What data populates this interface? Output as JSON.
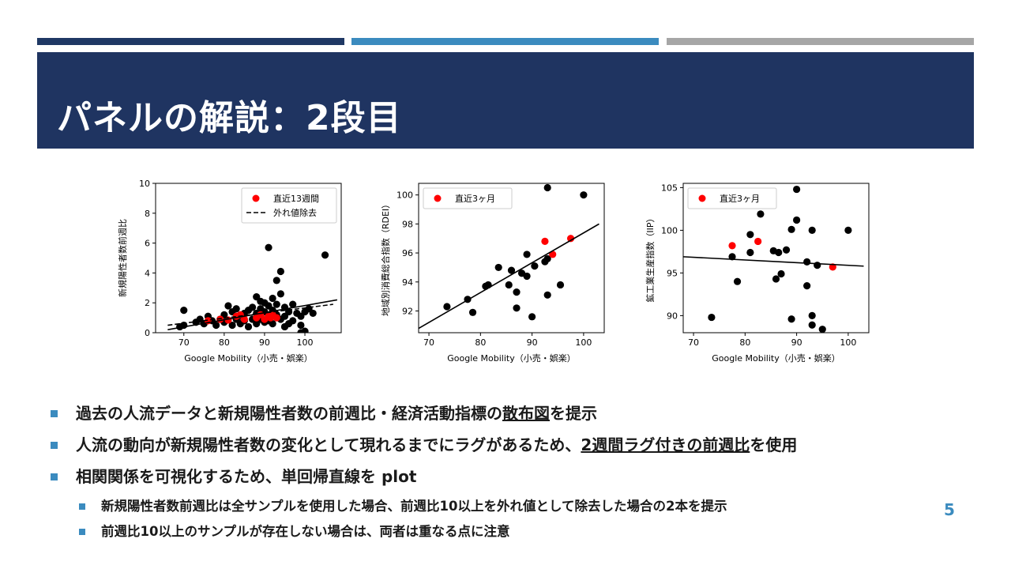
{
  "slide": {
    "title": "パネルの解説：2段目",
    "page_number": "5"
  },
  "bullets": [
    {
      "level": 1,
      "parts": [
        {
          "t": "過去の人流データと新規陽性者数の前週比・経済活動指標の"
        },
        {
          "t": "散布図",
          "u": true
        },
        {
          "t": "を提示"
        }
      ]
    },
    {
      "level": 1,
      "parts": [
        {
          "t": "人流の動向が新規陽性者数の変化として現れるまでにラグがあるため、"
        },
        {
          "t": "2週間ラグ付きの前週比",
          "u": true
        },
        {
          "t": "を使用"
        }
      ]
    },
    {
      "level": 1,
      "parts": [
        {
          "t": "相関関係を可視化するため、単回帰直線を plot"
        }
      ]
    },
    {
      "level": 2,
      "parts": [
        {
          "t": "新規陽性者数前週比は全サンプルを使用した場合、前週比10以上を外れ値として除去した場合の2本を提示"
        }
      ]
    },
    {
      "level": 2,
      "parts": [
        {
          "t": "前週比10以上のサンプルが存在しない場合は、両者は重なる点に注意"
        }
      ]
    }
  ],
  "colors": {
    "title_bg": "#1f3461",
    "accent": "#3b8bbf",
    "recent": "#ff0000",
    "point": "#000000"
  },
  "chart_data": [
    {
      "type": "scatter",
      "xlabel": "Google Mobility（小売・娯楽）",
      "ylabel": "新規陽性者数前週比",
      "xlim": [
        63,
        109
      ],
      "ylim": [
        0,
        10
      ],
      "xticks": [
        70,
        80,
        90,
        100
      ],
      "yticks": [
        0,
        2,
        4,
        6,
        8,
        10
      ],
      "legend_position": "top-right",
      "legend": [
        {
          "kind": "dot",
          "label": "直近13週間"
        },
        {
          "kind": "dash",
          "label": "外れ値除去"
        }
      ],
      "series": [
        {
          "name": "直近13週間",
          "color": "#ff0000",
          "points": [
            [
              76,
              0.8
            ],
            [
              79,
              0.9
            ],
            [
              81,
              0.85
            ],
            [
              83,
              1.1
            ],
            [
              84,
              1.2
            ],
            [
              85,
              0.9
            ],
            [
              88,
              1.0
            ],
            [
              89,
              1.2
            ],
            [
              90,
              0.9
            ],
            [
              91,
              1.1
            ],
            [
              91.5,
              1.0
            ],
            [
              92,
              1.2
            ],
            [
              93,
              1.0
            ]
          ]
        },
        {
          "name": "",
          "color": "#000000",
          "points": [
            [
              69,
              0.4
            ],
            [
              70,
              0.5
            ],
            [
              70,
              1.5
            ],
            [
              73,
              0.7
            ],
            [
              74,
              0.9
            ],
            [
              75,
              0.6
            ],
            [
              76,
              1.1
            ],
            [
              77,
              0.8
            ],
            [
              78,
              0.5
            ],
            [
              79,
              0.9
            ],
            [
              80,
              1.2
            ],
            [
              80,
              0.7
            ],
            [
              81,
              1.8
            ],
            [
              82,
              1.4
            ],
            [
              82,
              0.5
            ],
            [
              83,
              1.6
            ],
            [
              83,
              0.9
            ],
            [
              84,
              0.6
            ],
            [
              84,
              1.1
            ],
            [
              85,
              1.3
            ],
            [
              85,
              0.8
            ],
            [
              86,
              1.5
            ],
            [
              86,
              0.4
            ],
            [
              87,
              0.9
            ],
            [
              87,
              1.7
            ],
            [
              88,
              0.6
            ],
            [
              88,
              2.4
            ],
            [
              88,
              1.3
            ],
            [
              89,
              1.6
            ],
            [
              89,
              0.9
            ],
            [
              89,
              2.1
            ],
            [
              90,
              1.4
            ],
            [
              90,
              0.7
            ],
            [
              90,
              2.0
            ],
            [
              91,
              1.8
            ],
            [
              91,
              0.8
            ],
            [
              91,
              5.7
            ],
            [
              92,
              1.5
            ],
            [
              92,
              2.3
            ],
            [
              92,
              0.6
            ],
            [
              93,
              3.5
            ],
            [
              93,
              1.9
            ],
            [
              93,
              1.2
            ],
            [
              94,
              2.6
            ],
            [
              94,
              4.1
            ],
            [
              94,
              0.9
            ],
            [
              95,
              1.7
            ],
            [
              95,
              1.1
            ],
            [
              95,
              0.4
            ],
            [
              96,
              1.4
            ],
            [
              96,
              0.6
            ],
            [
              97,
              1.9
            ],
            [
              97,
              0.8
            ],
            [
              98,
              1.3
            ],
            [
              99,
              1.1
            ],
            [
              99,
              0.5
            ],
            [
              100,
              1.4
            ],
            [
              100,
              0.1
            ],
            [
              101,
              1.6
            ],
            [
              102,
              1.3
            ],
            [
              105,
              5.2
            ],
            [
              99,
              0.0
            ]
          ]
        }
      ],
      "lines": [
        {
          "style": "solid",
          "x": [
            66,
            108
          ],
          "y": [
            0.2,
            2.2
          ]
        },
        {
          "style": "dashed",
          "x": [
            66,
            107
          ],
          "y": [
            0.5,
            1.9
          ]
        }
      ]
    },
    {
      "type": "scatter",
      "xlabel": "Google Mobility（小売・娯楽）",
      "ylabel": "地域別消費総合指数（RDEI）",
      "xlim": [
        68,
        104
      ],
      "ylim": [
        90.5,
        100.8
      ],
      "xticks": [
        70,
        80,
        90,
        100
      ],
      "yticks": [
        92,
        94,
        96,
        98,
        100
      ],
      "legend_position": "top-left",
      "legend": [
        {
          "kind": "dot",
          "label": "直近3ヶ月"
        }
      ],
      "series": [
        {
          "name": "直近3ヶ月",
          "color": "#ff0000",
          "points": [
            [
              92.5,
              96.8
            ],
            [
              94,
              95.9
            ],
            [
              97.5,
              97.0
            ]
          ]
        },
        {
          "name": "",
          "color": "#000000",
          "points": [
            [
              73.5,
              92.3
            ],
            [
              77.5,
              92.8
            ],
            [
              78.5,
              91.9
            ],
            [
              81,
              93.7
            ],
            [
              81.5,
              93.8
            ],
            [
              83.5,
              95.0
            ],
            [
              85.5,
              93.8
            ],
            [
              86,
              94.8
            ],
            [
              87,
              93.3
            ],
            [
              87,
              92.2
            ],
            [
              88,
              94.6
            ],
            [
              89,
              95.9
            ],
            [
              89,
              94.4
            ],
            [
              90,
              91.6
            ],
            [
              90.5,
              95.1
            ],
            [
              92.5,
              95.4
            ],
            [
              93,
              95.6
            ],
            [
              93,
              93.1
            ],
            [
              93,
              100.5
            ],
            [
              95.5,
              93.8
            ],
            [
              100,
              100.0
            ]
          ]
        }
      ],
      "lines": [
        {
          "style": "solid",
          "x": [
            68,
            103
          ],
          "y": [
            90.8,
            98.0
          ]
        }
      ]
    },
    {
      "type": "scatter",
      "xlabel": "Google Mobility（小売・娯楽）",
      "ylabel": "鉱工業生産指数（IIP）",
      "xlim": [
        68,
        104
      ],
      "ylim": [
        88,
        105.5
      ],
      "xticks": [
        70,
        80,
        90,
        100
      ],
      "yticks": [
        90,
        95,
        100,
        105
      ],
      "legend_position": "top-left",
      "legend": [
        {
          "kind": "dot",
          "label": "直近3ヶ月"
        }
      ],
      "series": [
        {
          "name": "直近3ヶ月",
          "color": "#ff0000",
          "points": [
            [
              77.5,
              98.2
            ],
            [
              82.5,
              98.7
            ],
            [
              97,
              95.7
            ]
          ]
        },
        {
          "name": "",
          "color": "#000000",
          "points": [
            [
              73.5,
              89.8
            ],
            [
              77.5,
              96.9
            ],
            [
              78.5,
              94.0
            ],
            [
              81,
              97.4
            ],
            [
              81,
              99.5
            ],
            [
              83,
              101.9
            ],
            [
              85.5,
              97.6
            ],
            [
              86,
              94.3
            ],
            [
              86.5,
              97.4
            ],
            [
              87,
              94.9
            ],
            [
              88,
              97.7
            ],
            [
              89,
              100.1
            ],
            [
              89,
              89.6
            ],
            [
              90,
              101.2
            ],
            [
              90,
              104.8
            ],
            [
              92,
              96.3
            ],
            [
              92,
              93.5
            ],
            [
              93,
              100.0
            ],
            [
              93,
              90.0
            ],
            [
              93,
              88.9
            ],
            [
              94,
              95.9
            ],
            [
              95,
              88.4
            ],
            [
              100,
              100.0
            ]
          ]
        }
      ],
      "lines": [
        {
          "style": "solid",
          "x": [
            68,
            103
          ],
          "y": [
            96.9,
            95.8
          ]
        }
      ]
    }
  ]
}
